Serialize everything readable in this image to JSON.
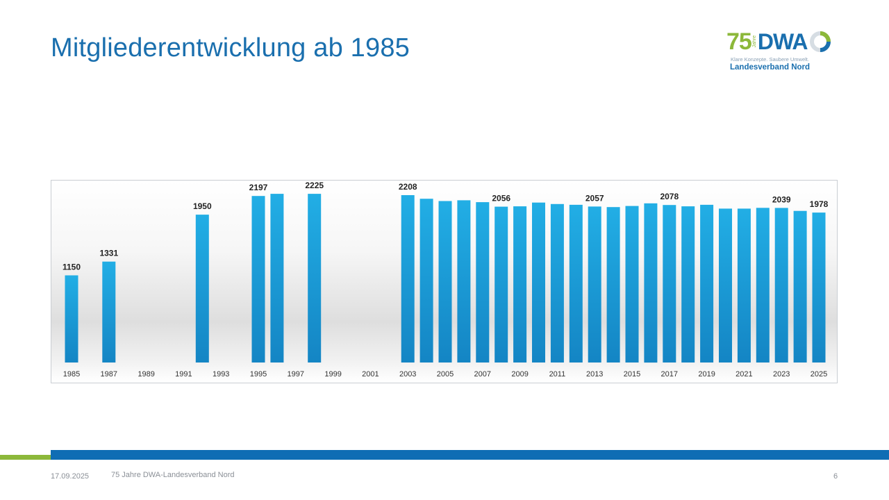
{
  "slide": {
    "title": "Mitgliederentwicklung ab 1985",
    "logo": {
      "number": "75",
      "jahre": "Jahre",
      "brand": "DWA",
      "tagline": "Klare Konzepte. Saubere Umwelt.",
      "org": "Landesverband Nord"
    },
    "footer": {
      "date": "17.09.2025",
      "text": "75 Jahre DWA-Landesverband Nord",
      "page": "6"
    },
    "colors": {
      "title": "#1a6fae",
      "bar": "#1a9fd9",
      "accent_green": "#8cb83a",
      "accent_blue": "#0f6db4"
    }
  },
  "chart_data": {
    "type": "bar",
    "title": "",
    "xlabel": "",
    "ylabel": "",
    "ylim": [
      0,
      2400
    ],
    "grid": false,
    "categories": [
      "1985",
      "1986",
      "1987",
      "1988",
      "1989",
      "1990",
      "1991",
      "1992",
      "1993",
      "1994",
      "1995",
      "1996",
      "1997",
      "1998",
      "1999",
      "2000",
      "2001",
      "2002",
      "2003",
      "2004",
      "2005",
      "2006",
      "2007",
      "2008",
      "2009",
      "2010",
      "2011",
      "2012",
      "2013",
      "2014",
      "2015",
      "2016",
      "2017",
      "2018",
      "2019",
      "2020",
      "2021",
      "2022",
      "2023",
      "2024",
      "2025"
    ],
    "x_tick_labels": [
      "1985",
      "1987",
      "1989",
      "1991",
      "1993",
      "1995",
      "1997",
      "1999",
      "2001",
      "2003",
      "2005",
      "2007",
      "2009",
      "2011",
      "2013",
      "2015",
      "2017",
      "2019",
      "2021",
      "2023",
      "2025"
    ],
    "values": [
      1150,
      null,
      1331,
      null,
      null,
      null,
      null,
      1950,
      null,
      null,
      2197,
      2225,
      null,
      2225,
      null,
      null,
      null,
      null,
      2208,
      2160,
      2130,
      2140,
      2115,
      2056,
      2060,
      2110,
      2090,
      2080,
      2057,
      2050,
      2065,
      2100,
      2078,
      2060,
      2080,
      2030,
      2030,
      2040,
      2039,
      2000,
      1978
    ],
    "data_labels": [
      {
        "year": "1985",
        "value": 1150
      },
      {
        "year": "1987",
        "value": 1331
      },
      {
        "year": "1992",
        "value": 1950
      },
      {
        "year": "1995",
        "value": 2197
      },
      {
        "year": "1998",
        "value": 2225
      },
      {
        "year": "2003",
        "value": 2208
      },
      {
        "year": "2008",
        "value": 2056
      },
      {
        "year": "2013",
        "value": 2057
      },
      {
        "year": "2017",
        "value": 2078
      },
      {
        "year": "2023",
        "value": 2039
      },
      {
        "year": "2025",
        "value": 1978
      }
    ]
  }
}
